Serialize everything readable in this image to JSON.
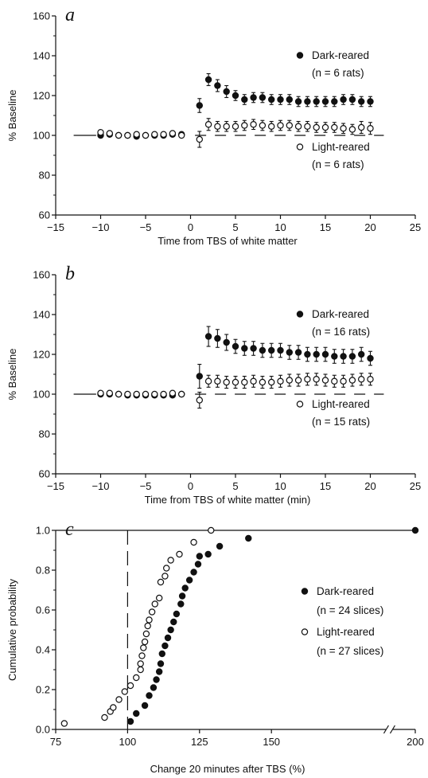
{
  "chart_data": [
    {
      "panel": "a",
      "type": "scatter",
      "xlabel": "Time from TBS of white matter",
      "ylabel": "% Baseline",
      "xlim": [
        -15,
        25
      ],
      "ylim": [
        60,
        160
      ],
      "xticks": [
        -15,
        -10,
        -5,
        0,
        5,
        10,
        15,
        20,
        25
      ],
      "yticks": [
        60,
        80,
        100,
        120,
        140,
        160
      ],
      "baseline": 100,
      "series": [
        {
          "name": "Dark-reared",
          "n_label": "(n = 6 rats)",
          "filled": true,
          "x": [
            -10,
            -9,
            -8,
            -7,
            -6,
            -5,
            -4,
            -3,
            -2,
            -1,
            1,
            2,
            3,
            4,
            5,
            6,
            7,
            8,
            9,
            10,
            11,
            12,
            13,
            14,
            15,
            16,
            17,
            18,
            19,
            20
          ],
          "y": [
            100,
            100.5,
            100,
            100,
            99.5,
            100,
            100,
            100,
            100.5,
            100.5,
            115,
            128,
            125,
            122,
            120,
            118,
            119,
            119,
            118,
            118,
            118,
            117,
            117,
            117,
            117,
            117,
            118,
            118,
            117,
            117
          ],
          "err": [
            0.6,
            0.6,
            0.6,
            0.6,
            0.6,
            0.6,
            0.6,
            0.6,
            0.6,
            0.6,
            3.5,
            3,
            3,
            3,
            2.5,
            2.5,
            2.5,
            2.5,
            2.5,
            2.5,
            2.5,
            2.5,
            2.5,
            2.5,
            2.5,
            2.5,
            2.5,
            2.5,
            2.5,
            2.5
          ]
        },
        {
          "name": "Light-reared",
          "n_label": "(n = 6 rats)",
          "filled": false,
          "x": [
            -10,
            -9,
            -8,
            -7,
            -6,
            -5,
            -4,
            -3,
            -2,
            -1,
            1,
            2,
            3,
            4,
            5,
            6,
            7,
            8,
            9,
            10,
            11,
            12,
            13,
            14,
            15,
            16,
            17,
            18,
            19,
            20
          ],
          "y": [
            101.5,
            101,
            100,
            100,
            100.5,
            100,
            100.5,
            100.5,
            101,
            100,
            98,
            105.5,
            104.5,
            104.5,
            104.5,
            105,
            105.5,
            105,
            104.5,
            105,
            105,
            104.5,
            104.5,
            104,
            104,
            104,
            103.5,
            103,
            104,
            103.5
          ],
          "err": [
            0.8,
            0.8,
            0.8,
            0.8,
            0.8,
            0.8,
            0.8,
            0.8,
            0.8,
            0.8,
            4,
            3,
            2.5,
            2.5,
            2.5,
            2.5,
            2.5,
            2.5,
            2.5,
            2.5,
            2.5,
            2.5,
            2.5,
            2.5,
            2.5,
            2.5,
            2.5,
            2.5,
            3,
            3
          ]
        }
      ]
    },
    {
      "panel": "b",
      "type": "scatter",
      "xlabel": "Time from TBS of white matter (min)",
      "ylabel": "% Baseline",
      "xlim": [
        -15,
        25
      ],
      "ylim": [
        60,
        160
      ],
      "xticks": [
        -15,
        -10,
        -5,
        0,
        5,
        10,
        15,
        20,
        25
      ],
      "yticks": [
        60,
        80,
        100,
        120,
        140,
        160
      ],
      "baseline": 100,
      "series": [
        {
          "name": "Dark-reared",
          "n_label": "(n = 16 rats)",
          "filled": true,
          "x": [
            -10,
            -9,
            -8,
            -7,
            -6,
            -5,
            -4,
            -3,
            -2,
            -1,
            1,
            2,
            3,
            4,
            5,
            6,
            7,
            8,
            9,
            10,
            11,
            12,
            13,
            14,
            15,
            16,
            17,
            18,
            19,
            20
          ],
          "y": [
            100,
            100,
            100,
            99.5,
            99.5,
            99.5,
            99.5,
            99.5,
            99.5,
            100,
            109,
            129,
            128,
            126,
            124,
            123,
            123,
            122,
            122,
            122,
            121,
            121,
            120,
            120,
            120,
            119,
            119,
            119,
            120,
            118
          ],
          "err": [
            0.6,
            0.6,
            0.6,
            0.6,
            0.6,
            0.6,
            0.6,
            0.6,
            0.6,
            0.6,
            6,
            5,
            4.5,
            4,
            3.5,
            3.5,
            3.5,
            3.5,
            3.5,
            3.5,
            3.5,
            3.5,
            3.5,
            3.5,
            3.5,
            3.5,
            3.5,
            3.5,
            3.5,
            3.5
          ]
        },
        {
          "name": "Light-reared",
          "n_label": "(n = 15 rats)",
          "filled": false,
          "x": [
            -10,
            -9,
            -8,
            -7,
            -6,
            -5,
            -4,
            -3,
            -2,
            -1,
            1,
            2,
            3,
            4,
            5,
            6,
            7,
            8,
            9,
            10,
            11,
            12,
            13,
            14,
            15,
            16,
            17,
            18,
            19,
            20
          ],
          "y": [
            100.5,
            100.5,
            100,
            100,
            100,
            100,
            100,
            100,
            100.5,
            100,
            97,
            106.5,
            106.5,
            106,
            106,
            106,
            106.5,
            106,
            106,
            106.5,
            107,
            107,
            107.5,
            107.5,
            107,
            106.5,
            106.5,
            107,
            107.5,
            107.5
          ],
          "err": [
            0.8,
            0.8,
            0.8,
            0.8,
            0.8,
            0.8,
            0.8,
            0.8,
            0.8,
            0.8,
            4,
            3,
            3,
            3,
            3,
            3,
            3,
            3,
            3,
            3,
            3,
            3,
            3,
            3,
            3,
            3,
            3,
            3,
            3,
            3
          ]
        }
      ]
    },
    {
      "panel": "c",
      "type": "scatter",
      "xlabel": "Change 20 minutes after TBS (%)",
      "ylabel": "Cumulative probability",
      "xlim": [
        75,
        200
      ],
      "ylim": [
        0,
        1
      ],
      "xticks": [
        75,
        100,
        125,
        150,
        200
      ],
      "yticks": [
        0.0,
        0.2,
        0.4,
        0.6,
        0.8,
        1.0
      ],
      "ytick_labels": [
        "0.0",
        "0.2",
        "0.4",
        "0.6",
        "0.8",
        "1.0"
      ],
      "reference_x": 100,
      "axis_break": true,
      "series": [
        {
          "name": "Dark-reared",
          "n_label": "(n = 24 slices)",
          "filled": true,
          "x": [
            101,
            103,
            106,
            107.5,
            109,
            110,
            111,
            111.5,
            112,
            113,
            114,
            115,
            116,
            117,
            118.5,
            119,
            120,
            121.5,
            123,
            124.5,
            125,
            128,
            132,
            142,
            200
          ],
          "y": [
            0.04,
            0.08,
            0.12,
            0.17,
            0.21,
            0.25,
            0.29,
            0.33,
            0.38,
            0.42,
            0.46,
            0.5,
            0.54,
            0.58,
            0.63,
            0.67,
            0.71,
            0.75,
            0.79,
            0.83,
            0.87,
            0.88,
            0.92,
            0.96,
            1.0
          ]
        },
        {
          "name": "Light-reared",
          "n_label": "(n = 27 slices)",
          "filled": false,
          "x": [
            78,
            92,
            94,
            95,
            97,
            99,
            101,
            103,
            104.5,
            104.5,
            105,
            105.5,
            106,
            106.5,
            107,
            107.5,
            108.5,
            109.5,
            111,
            111.5,
            113,
            113.5,
            115,
            118,
            123,
            129
          ],
          "y": [
            0.03,
            0.06,
            0.09,
            0.11,
            0.15,
            0.19,
            0.22,
            0.26,
            0.3,
            0.33,
            0.37,
            0.41,
            0.44,
            0.48,
            0.52,
            0.55,
            0.59,
            0.63,
            0.66,
            0.74,
            0.77,
            0.81,
            0.85,
            0.88,
            0.94,
            1.0
          ]
        }
      ]
    }
  ]
}
